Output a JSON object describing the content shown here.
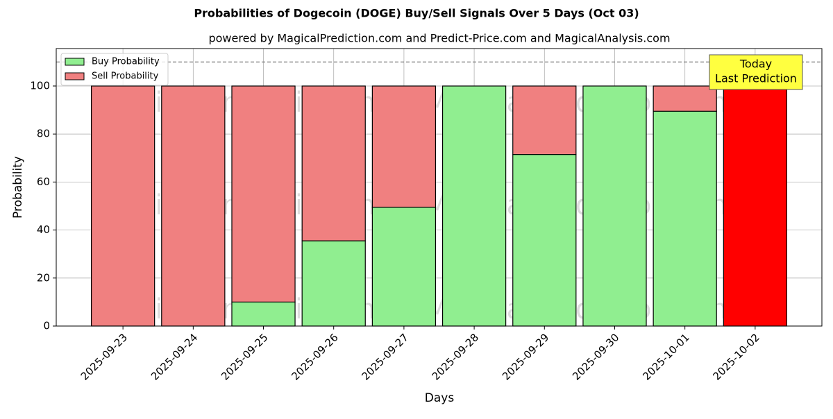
{
  "chart_data": {
    "type": "stacked_bar",
    "title": "Probabilities of Dogecoin (DOGE) Buy/Sell Signals Over 5 Days (Oct 03)",
    "subtitle": "powered by MagicalPrediction.com and Predict-Price.com and MagicalAnalysis.com",
    "x_label": "Days",
    "y_label": "Probability",
    "categories": [
      "2025-09-23",
      "2025-09-24",
      "2025-09-25",
      "2025-09-26",
      "2025-09-27",
      "2025-09-28",
      "2025-09-29",
      "2025-09-30",
      "2025-10-01",
      "2025-10-02"
    ],
    "series": [
      {
        "name": "Buy Probability",
        "color": "#90ee90",
        "values": [
          0,
          0,
          10,
          35.5,
          49.5,
          100,
          71.5,
          100,
          89.5,
          0
        ]
      },
      {
        "name": "Sell Probability",
        "color": "#f08080",
        "values": [
          100,
          100,
          90,
          64.5,
          50.5,
          0,
          28.5,
          0,
          10.5,
          100
        ],
        "colors": [
          "#f08080",
          "#f08080",
          "#f08080",
          "#f08080",
          "#f08080",
          "#f08080",
          "#f08080",
          "#f08080",
          "#f08080",
          "#ff0000"
        ]
      }
    ],
    "ylim": [
      0,
      115.6
    ],
    "yticks": [
      0,
      20,
      40,
      60,
      80,
      100
    ],
    "grid": true,
    "hline": 110,
    "legend": "upper left",
    "annotation": [
      "Today",
      "Last Prediction"
    ],
    "watermarks": [
      "MagicalAnalysis.com",
      "MagicalPrediction.com"
    ]
  }
}
